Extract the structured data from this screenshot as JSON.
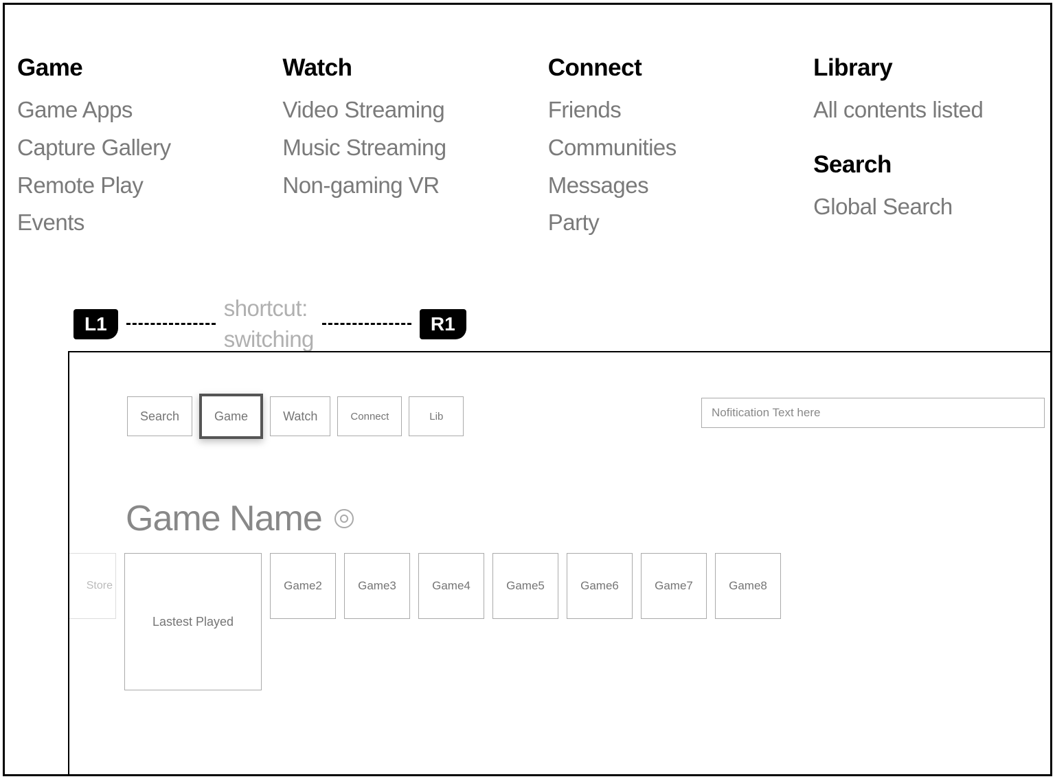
{
  "menu": {
    "columns": [
      {
        "heading": "Game",
        "items": [
          "Game Apps",
          "Capture Gallery",
          "Remote Play",
          "Events"
        ]
      },
      {
        "heading": "Watch",
        "items": [
          "Video Streaming",
          "Music Streaming",
          "Non-gaming VR"
        ]
      },
      {
        "heading": "Connect",
        "items": [
          "Friends",
          "Communities",
          "Messages",
          "Party"
        ]
      }
    ],
    "right": {
      "library_heading": "Library",
      "library_item": "All contents listed",
      "search_heading": "Search",
      "search_item": "Global Search"
    }
  },
  "shortcut": {
    "left_trigger": "L1",
    "right_trigger": "R1",
    "label_line1": "shortcut:",
    "label_line2": "switching"
  },
  "tabs": {
    "items": [
      "Search",
      "Game",
      "Watch",
      "Connect",
      "Lib"
    ],
    "selected_index": 1
  },
  "notification": {
    "text": "Nofitication Text here"
  },
  "content": {
    "title": "Game Name",
    "store_label": "Store",
    "latest_label": "Lastest Played",
    "games": [
      "Game2",
      "Game3",
      "Game4",
      "Game5",
      "Game6",
      "Game7",
      "Game8"
    ]
  },
  "colors": {
    "text_primary": "#000000",
    "text_secondary": "#7a7a7a",
    "text_muted": "#b0b0b0",
    "border": "#aaaaaa",
    "background": "#ffffff"
  }
}
